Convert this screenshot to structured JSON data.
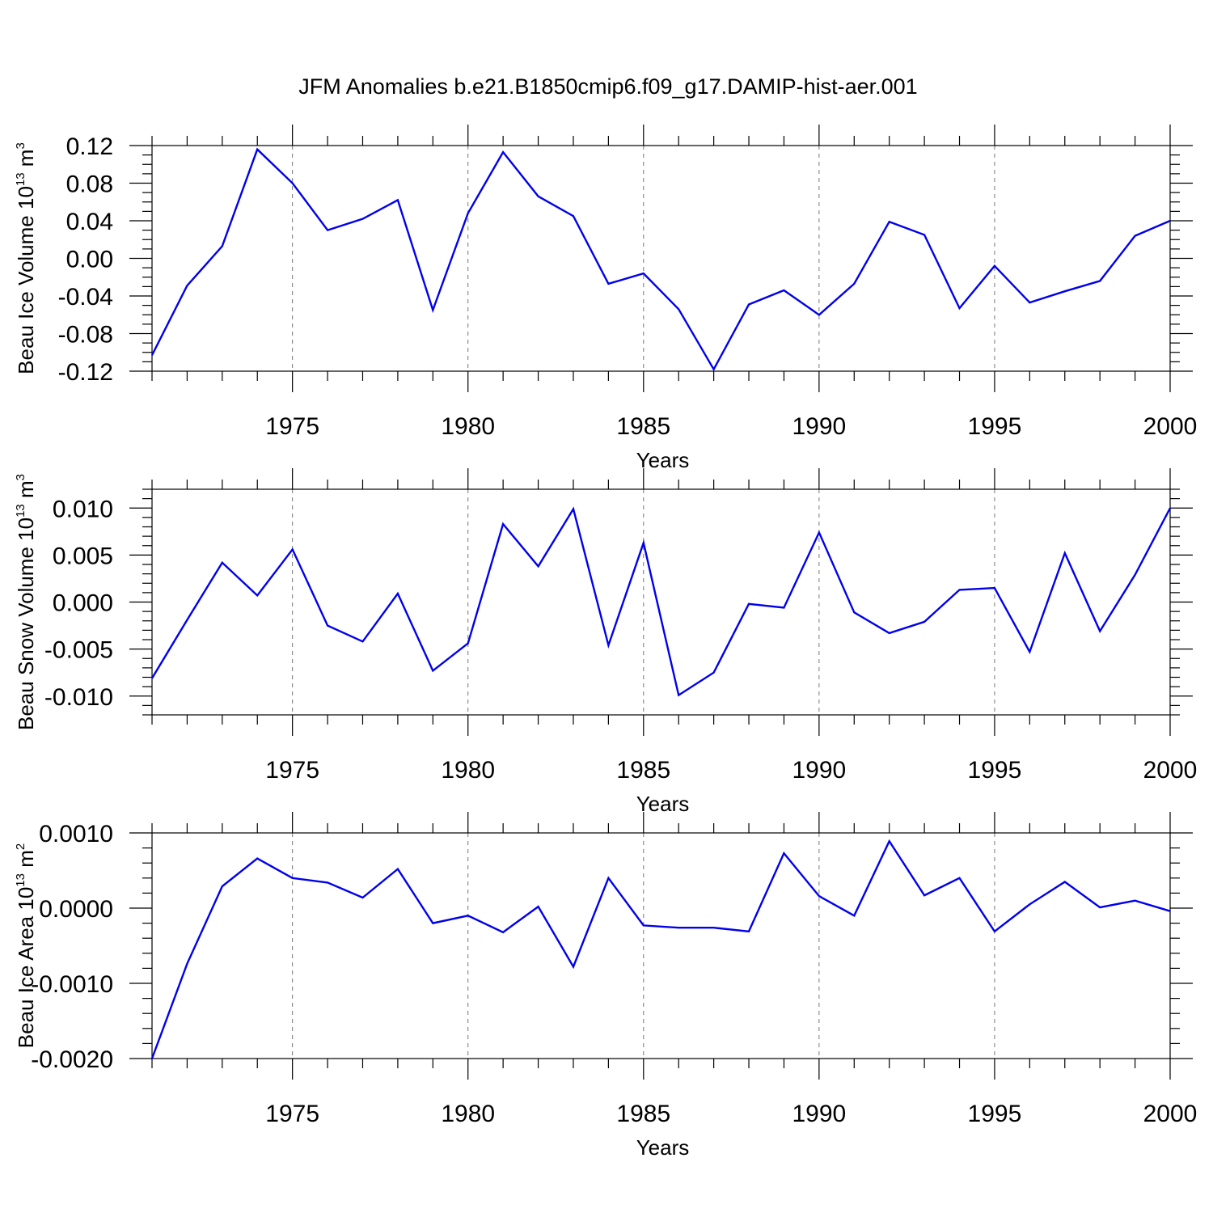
{
  "title": "JFM Anomalies b.e21.B1850cmip6.f09_g17.DAMIP-hist-aer.001",
  "chart_data": [
    {
      "type": "line",
      "name": "ice-volume",
      "title": "JFM Anomalies b.e21.B1850cmip6.f09_g17.DAMIP-hist-aer.001",
      "xlabel": "Years",
      "ylabel_main": "Beau Ice Volume 10",
      "ylabel_sup": "13",
      "ylabel_unit": " m",
      "ylabel_unit_sup": "3",
      "xlim": [
        1971,
        2000
      ],
      "ylim": [
        -0.12,
        0.12
      ],
      "yticks": [
        -0.12,
        -0.08,
        -0.04,
        0.0,
        0.04,
        0.08,
        0.12
      ],
      "yticklabels": [
        "-0.12",
        "-0.08",
        "-0.04",
        "0.00",
        "0.04",
        "0.08",
        "0.12"
      ],
      "yminor": 0.01,
      "xticks": [
        1975,
        1980,
        1985,
        1990,
        1995,
        2000
      ],
      "xticklabels": [
        "1975",
        "1980",
        "1985",
        "1990",
        "1995",
        "2000"
      ],
      "grid": "dashed vertical at labeled years",
      "series": [
        {
          "name": "Beau Ice Volume",
          "color": "#0000ee",
          "x": [
            1971,
            1972,
            1973,
            1974,
            1975,
            1976,
            1977,
            1978,
            1979,
            1980,
            1981,
            1982,
            1983,
            1984,
            1985,
            1986,
            1987,
            1988,
            1989,
            1990,
            1991,
            1992,
            1993,
            1994,
            1995,
            1996,
            1997,
            1998,
            1999,
            2000
          ],
          "values": [
            -0.103,
            -0.029,
            0.013,
            0.116,
            0.08,
            0.03,
            0.042,
            0.062,
            -0.055,
            0.048,
            0.113,
            0.066,
            0.045,
            -0.027,
            -0.016,
            -0.054,
            -0.118,
            -0.049,
            -0.034,
            -0.06,
            -0.027,
            0.039,
            0.025,
            -0.053,
            -0.008,
            -0.047,
            -0.035,
            -0.024,
            0.024,
            0.04
          ]
        }
      ]
    },
    {
      "type": "line",
      "name": "snow-volume",
      "xlabel": "Years",
      "ylabel_main": "Beau Snow Volume 10",
      "ylabel_sup": "13",
      "ylabel_unit": " m",
      "ylabel_unit_sup": "3",
      "xlim": [
        1971,
        2000
      ],
      "ylim": [
        -0.012,
        0.012
      ],
      "yticks": [
        -0.01,
        -0.005,
        0.0,
        0.005,
        0.01
      ],
      "yticklabels": [
        "-0.010",
        "-0.005",
        "0.000",
        "0.005",
        "0.010"
      ],
      "yminor": 0.001,
      "xticks": [
        1975,
        1980,
        1985,
        1990,
        1995,
        2000
      ],
      "xticklabels": [
        "1975",
        "1980",
        "1985",
        "1990",
        "1995",
        "2000"
      ],
      "grid": "dashed vertical at labeled years",
      "series": [
        {
          "name": "Beau Snow Volume",
          "color": "#0000ee",
          "x": [
            1971,
            1972,
            1973,
            1974,
            1975,
            1976,
            1977,
            1978,
            1979,
            1980,
            1981,
            1982,
            1983,
            1984,
            1985,
            1986,
            1987,
            1988,
            1989,
            1990,
            1991,
            1992,
            1993,
            1994,
            1995,
            1996,
            1997,
            1998,
            1999,
            2000
          ],
          "values": [
            -0.0081,
            -0.0019,
            0.0042,
            0.0007,
            0.0056,
            -0.0025,
            -0.0042,
            0.0009,
            -0.0073,
            -0.0044,
            0.0083,
            0.0038,
            0.0099,
            -0.0046,
            0.0063,
            -0.0099,
            -0.0075,
            -0.0002,
            -0.0006,
            0.0074,
            -0.0011,
            -0.0033,
            -0.0021,
            0.0013,
            0.0015,
            -0.0053,
            0.0052,
            -0.0031,
            0.0029,
            0.01
          ]
        }
      ]
    },
    {
      "type": "line",
      "name": "ice-area",
      "xlabel": "Years",
      "ylabel_main": "Beau Ice Area 10",
      "ylabel_sup": "13",
      "ylabel_unit": " m",
      "ylabel_unit_sup": "2",
      "xlim": [
        1971,
        2000
      ],
      "ylim": [
        -0.002,
        0.001
      ],
      "yticks": [
        -0.002,
        -0.001,
        0.0,
        0.001
      ],
      "yticklabels": [
        "-0.0020",
        "-0.0010",
        "0.0000",
        "0.0010"
      ],
      "yminor": 0.0002,
      "xticks": [
        1975,
        1980,
        1985,
        1990,
        1995,
        2000
      ],
      "xticklabels": [
        "1975",
        "1980",
        "1985",
        "1990",
        "1995",
        "2000"
      ],
      "grid": "dashed vertical at labeled years",
      "series": [
        {
          "name": "Beau Ice Area",
          "color": "#0000ee",
          "x": [
            1971,
            1972,
            1973,
            1974,
            1975,
            1976,
            1977,
            1978,
            1979,
            1980,
            1981,
            1982,
            1983,
            1984,
            1985,
            1986,
            1987,
            1988,
            1989,
            1990,
            1991,
            1992,
            1993,
            1994,
            1995,
            1996,
            1997,
            1998,
            1999,
            2000
          ],
          "values": [
            -0.002,
            -0.00074,
            0.00029,
            0.00066,
            0.0004,
            0.00034,
            0.00014,
            0.00052,
            -0.0002,
            -0.0001,
            -0.00032,
            2e-05,
            -0.00078,
            0.0004,
            -0.00023,
            -0.00026,
            -0.00026,
            -0.00031,
            0.00073,
            0.00016,
            -0.0001,
            0.00089,
            0.00017,
            0.0004,
            -0.00031,
            5e-05,
            0.00035,
            1e-05,
            0.0001,
            -4e-05
          ]
        }
      ]
    }
  ]
}
